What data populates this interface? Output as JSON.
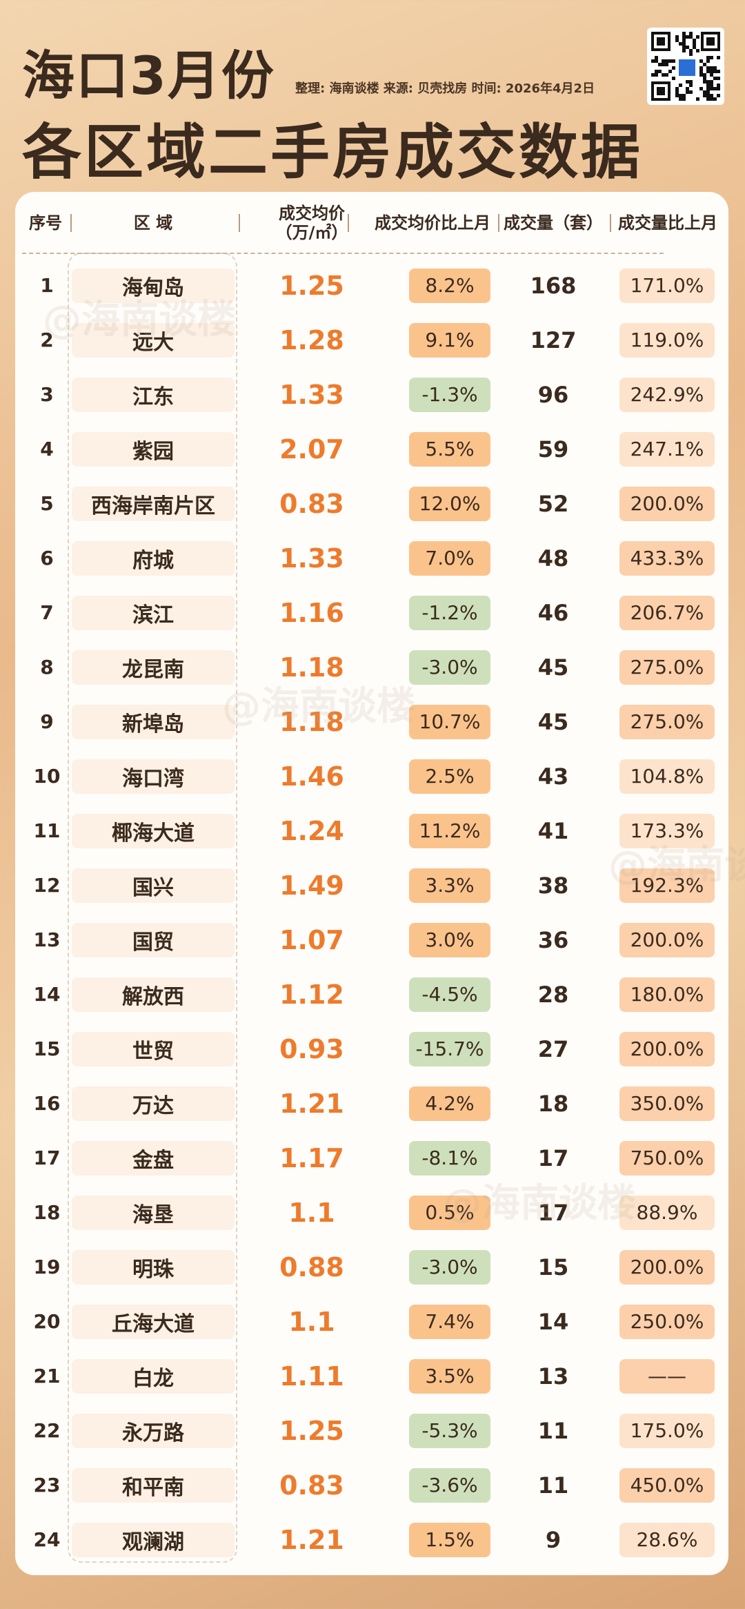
{
  "header": {
    "title_line1": "海口3月份",
    "title_line2": "各区域二手房成交数据",
    "meta": "整理: 海南谈楼  来源: 贝壳找房  时间: 2026年4月2日",
    "watermark": "@海南谈楼"
  },
  "colors": {
    "price_text": "#ee7b2c",
    "up_badge": "#fbc38c",
    "down_badge": "#cde0bb",
    "vol_light": "#fde3cb",
    "vol_mid": "#fbd0ab"
  },
  "chart_data": {
    "type": "table",
    "columns": [
      "序号",
      "区 域",
      "成交均价\n（万/㎡）",
      "成交均价比上月",
      "成交量（套）",
      "成交量比上月"
    ],
    "rows": [
      {
        "rank": "1",
        "region": "海甸岛",
        "price": "1.25",
        "price_change": "8.2%",
        "volume": "168",
        "volume_change": "171.0%"
      },
      {
        "rank": "2",
        "region": "远大",
        "price": "1.28",
        "price_change": "9.1%",
        "volume": "127",
        "volume_change": "119.0%"
      },
      {
        "rank": "3",
        "region": "江东",
        "price": "1.33",
        "price_change": "-1.3%",
        "volume": "96",
        "volume_change": "242.9%"
      },
      {
        "rank": "4",
        "region": "紫园",
        "price": "2.07",
        "price_change": "5.5%",
        "volume": "59",
        "volume_change": "247.1%"
      },
      {
        "rank": "5",
        "region": "西海岸南片区",
        "price": "0.83",
        "price_change": "12.0%",
        "volume": "52",
        "volume_change": "200.0%"
      },
      {
        "rank": "6",
        "region": "府城",
        "price": "1.33",
        "price_change": "7.0%",
        "volume": "48",
        "volume_change": "433.3%"
      },
      {
        "rank": "7",
        "region": "滨江",
        "price": "1.16",
        "price_change": "-1.2%",
        "volume": "46",
        "volume_change": "206.7%"
      },
      {
        "rank": "8",
        "region": "龙昆南",
        "price": "1.18",
        "price_change": "-3.0%",
        "volume": "45",
        "volume_change": "275.0%"
      },
      {
        "rank": "9",
        "region": "新埠岛",
        "price": "1.18",
        "price_change": "10.7%",
        "volume": "45",
        "volume_change": "275.0%"
      },
      {
        "rank": "10",
        "region": "海口湾",
        "price": "1.46",
        "price_change": "2.5%",
        "volume": "43",
        "volume_change": "104.8%"
      },
      {
        "rank": "11",
        "region": "椰海大道",
        "price": "1.24",
        "price_change": "11.2%",
        "volume": "41",
        "volume_change": "173.3%"
      },
      {
        "rank": "12",
        "region": "国兴",
        "price": "1.49",
        "price_change": "3.3%",
        "volume": "38",
        "volume_change": "192.3%"
      },
      {
        "rank": "13",
        "region": "国贸",
        "price": "1.07",
        "price_change": "3.0%",
        "volume": "36",
        "volume_change": "200.0%"
      },
      {
        "rank": "14",
        "region": "解放西",
        "price": "1.12",
        "price_change": "-4.5%",
        "volume": "28",
        "volume_change": "180.0%"
      },
      {
        "rank": "15",
        "region": "世贸",
        "price": "0.93",
        "price_change": "-15.7%",
        "volume": "27",
        "volume_change": "200.0%"
      },
      {
        "rank": "16",
        "region": "万达",
        "price": "1.21",
        "price_change": "4.2%",
        "volume": "18",
        "volume_change": "350.0%"
      },
      {
        "rank": "17",
        "region": "金盘",
        "price": "1.17",
        "price_change": "-8.1%",
        "volume": "17",
        "volume_change": "750.0%"
      },
      {
        "rank": "18",
        "region": "海垦",
        "price": "1.1",
        "price_change": "0.5%",
        "volume": "17",
        "volume_change": "88.9%"
      },
      {
        "rank": "19",
        "region": "明珠",
        "price": "0.88",
        "price_change": "-3.0%",
        "volume": "15",
        "volume_change": "200.0%"
      },
      {
        "rank": "20",
        "region": "丘海大道",
        "price": "1.1",
        "price_change": "7.4%",
        "volume": "14",
        "volume_change": "250.0%"
      },
      {
        "rank": "21",
        "region": "白龙",
        "price": "1.11",
        "price_change": "3.5%",
        "volume": "13",
        "volume_change": "——"
      },
      {
        "rank": "22",
        "region": "永万路",
        "price": "1.25",
        "price_change": "-5.3%",
        "volume": "11",
        "volume_change": "175.0%"
      },
      {
        "rank": "23",
        "region": "和平南",
        "price": "0.83",
        "price_change": "-3.6%",
        "volume": "11",
        "volume_change": "450.0%"
      },
      {
        "rank": "24",
        "region": "观澜湖",
        "price": "1.21",
        "price_change": "1.5%",
        "volume": "9",
        "volume_change": "28.6%"
      }
    ]
  }
}
